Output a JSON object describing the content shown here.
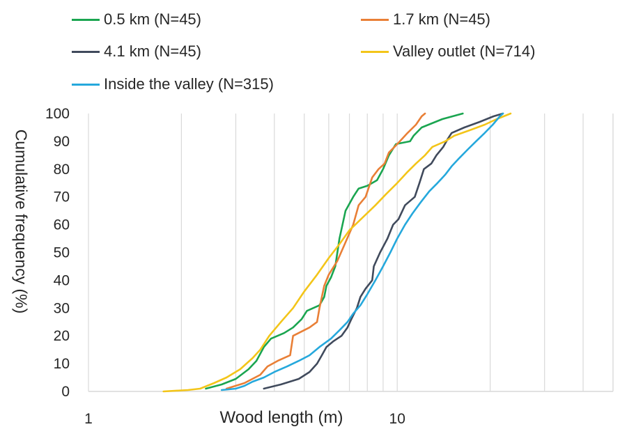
{
  "chart_data": {
    "type": "line",
    "xlabel": "Wood length (m)",
    "ylabel": "Cumulative frequency (%)",
    "x_scale": "log",
    "xlim": [
      1,
      50
    ],
    "ylim": [
      0,
      100
    ],
    "x_ticks": [
      "1",
      "10"
    ],
    "y_ticks": [
      "0",
      "10",
      "20",
      "30",
      "40",
      "50",
      "60",
      "70",
      "80",
      "90",
      "100"
    ],
    "grid": "vertical minor log gridlines",
    "legend_position": "top",
    "series": [
      {
        "name": "0.5 km (N=45)",
        "color": "#1aa550",
        "points": [
          [
            2.4,
            1
          ],
          [
            2.7,
            2.5
          ],
          [
            3.0,
            4.5
          ],
          [
            3.3,
            8
          ],
          [
            3.5,
            11
          ],
          [
            3.7,
            16
          ],
          [
            3.9,
            19
          ],
          [
            4.3,
            21
          ],
          [
            4.6,
            23
          ],
          [
            4.9,
            26
          ],
          [
            5.1,
            29
          ],
          [
            5.6,
            31
          ],
          [
            5.8,
            34
          ],
          [
            5.9,
            38
          ],
          [
            6.1,
            41
          ],
          [
            6.3,
            45
          ],
          [
            6.4,
            50
          ],
          [
            6.5,
            55
          ],
          [
            6.8,
            65
          ],
          [
            7.2,
            70
          ],
          [
            7.5,
            73
          ],
          [
            8.0,
            74
          ],
          [
            8.6,
            76
          ],
          [
            9.0,
            80
          ],
          [
            9.4,
            85
          ],
          [
            9.9,
            89
          ],
          [
            11.0,
            90
          ],
          [
            11.3,
            92
          ],
          [
            12.0,
            95
          ],
          [
            14.0,
            98
          ],
          [
            16.3,
            100
          ]
        ]
      },
      {
        "name": "1.7 km (N=45)",
        "color": "#e97f36",
        "points": [
          [
            2.8,
            1
          ],
          [
            3.2,
            3
          ],
          [
            3.6,
            6
          ],
          [
            3.8,
            9
          ],
          [
            4.1,
            11
          ],
          [
            4.5,
            13
          ],
          [
            4.6,
            20
          ],
          [
            5.2,
            23
          ],
          [
            5.5,
            25
          ],
          [
            5.6,
            30
          ],
          [
            5.8,
            38
          ],
          [
            6.0,
            42
          ],
          [
            6.4,
            47
          ],
          [
            6.7,
            52
          ],
          [
            7.2,
            60
          ],
          [
            7.5,
            67
          ],
          [
            7.9,
            70
          ],
          [
            8.3,
            77
          ],
          [
            8.7,
            80
          ],
          [
            9.1,
            82
          ],
          [
            9.4,
            86
          ],
          [
            9.8,
            88
          ],
          [
            10.2,
            90
          ],
          [
            10.8,
            93
          ],
          [
            11.5,
            96
          ],
          [
            12.0,
            99
          ],
          [
            12.3,
            100
          ]
        ]
      },
      {
        "name": "4.1 km (N=45)",
        "color": "#404a5c",
        "points": [
          [
            3.7,
            1
          ],
          [
            4.2,
            2.5
          ],
          [
            4.8,
            4.5
          ],
          [
            5.2,
            7
          ],
          [
            5.5,
            10
          ],
          [
            5.7,
            13
          ],
          [
            5.9,
            16
          ],
          [
            6.2,
            18
          ],
          [
            6.6,
            20
          ],
          [
            6.9,
            23
          ],
          [
            7.1,
            26
          ],
          [
            7.4,
            30
          ],
          [
            7.6,
            34
          ],
          [
            7.9,
            37
          ],
          [
            8.3,
            40
          ],
          [
            8.4,
            45
          ],
          [
            8.8,
            50
          ],
          [
            9.3,
            55
          ],
          [
            9.7,
            60
          ],
          [
            10.1,
            62
          ],
          [
            10.6,
            67
          ],
          [
            11.4,
            70
          ],
          [
            11.8,
            75
          ],
          [
            12.2,
            80
          ],
          [
            12.9,
            82
          ],
          [
            13.4,
            85
          ],
          [
            14.1,
            88
          ],
          [
            14.6,
            91
          ],
          [
            15.0,
            93
          ],
          [
            16.5,
            95
          ],
          [
            18.5,
            97
          ],
          [
            20.5,
            99
          ],
          [
            22.0,
            100
          ]
        ]
      },
      {
        "name": "Valley outlet (N=714)",
        "color": "#f3c519",
        "points": [
          [
            1.75,
            0
          ],
          [
            2.1,
            0.5
          ],
          [
            2.3,
            1
          ],
          [
            2.55,
            3
          ],
          [
            2.8,
            5
          ],
          [
            3.1,
            8
          ],
          [
            3.4,
            12
          ],
          [
            3.6,
            15
          ],
          [
            3.85,
            20
          ],
          [
            4.2,
            25
          ],
          [
            4.6,
            30
          ],
          [
            5.0,
            36
          ],
          [
            5.5,
            42
          ],
          [
            6.0,
            48
          ],
          [
            6.5,
            53
          ],
          [
            7.0,
            58
          ],
          [
            7.8,
            63
          ],
          [
            8.5,
            67
          ],
          [
            9.2,
            71
          ],
          [
            10.0,
            75
          ],
          [
            10.8,
            79
          ],
          [
            11.5,
            82
          ],
          [
            12.3,
            85
          ],
          [
            13.0,
            88
          ],
          [
            14.3,
            90
          ],
          [
            15.3,
            92
          ],
          [
            17.2,
            94
          ],
          [
            19.2,
            96
          ],
          [
            21.0,
            98
          ],
          [
            23.3,
            100
          ]
        ]
      },
      {
        "name": "Inside the valley (N=315)",
        "color": "#25a8dc",
        "points": [
          [
            2.7,
            0.5
          ],
          [
            3.0,
            1
          ],
          [
            3.2,
            2
          ],
          [
            3.4,
            3.5
          ],
          [
            3.7,
            5
          ],
          [
            4.0,
            7
          ],
          [
            4.4,
            9
          ],
          [
            4.8,
            11
          ],
          [
            5.2,
            13
          ],
          [
            5.6,
            16
          ],
          [
            6.1,
            19
          ],
          [
            6.5,
            22
          ],
          [
            6.9,
            25
          ],
          [
            7.2,
            28
          ],
          [
            7.6,
            31
          ],
          [
            8.0,
            35
          ],
          [
            8.5,
            40
          ],
          [
            9.0,
            45
          ],
          [
            9.5,
            50
          ],
          [
            10.0,
            55
          ],
          [
            10.6,
            60
          ],
          [
            11.2,
            64
          ],
          [
            11.9,
            68
          ],
          [
            12.7,
            72
          ],
          [
            13.5,
            75
          ],
          [
            14.3,
            78
          ],
          [
            15.0,
            81
          ],
          [
            15.9,
            84
          ],
          [
            16.9,
            87
          ],
          [
            18.0,
            90
          ],
          [
            19.2,
            93
          ],
          [
            20.4,
            96
          ],
          [
            21.5,
            99
          ],
          [
            22.0,
            100
          ]
        ]
      }
    ]
  }
}
